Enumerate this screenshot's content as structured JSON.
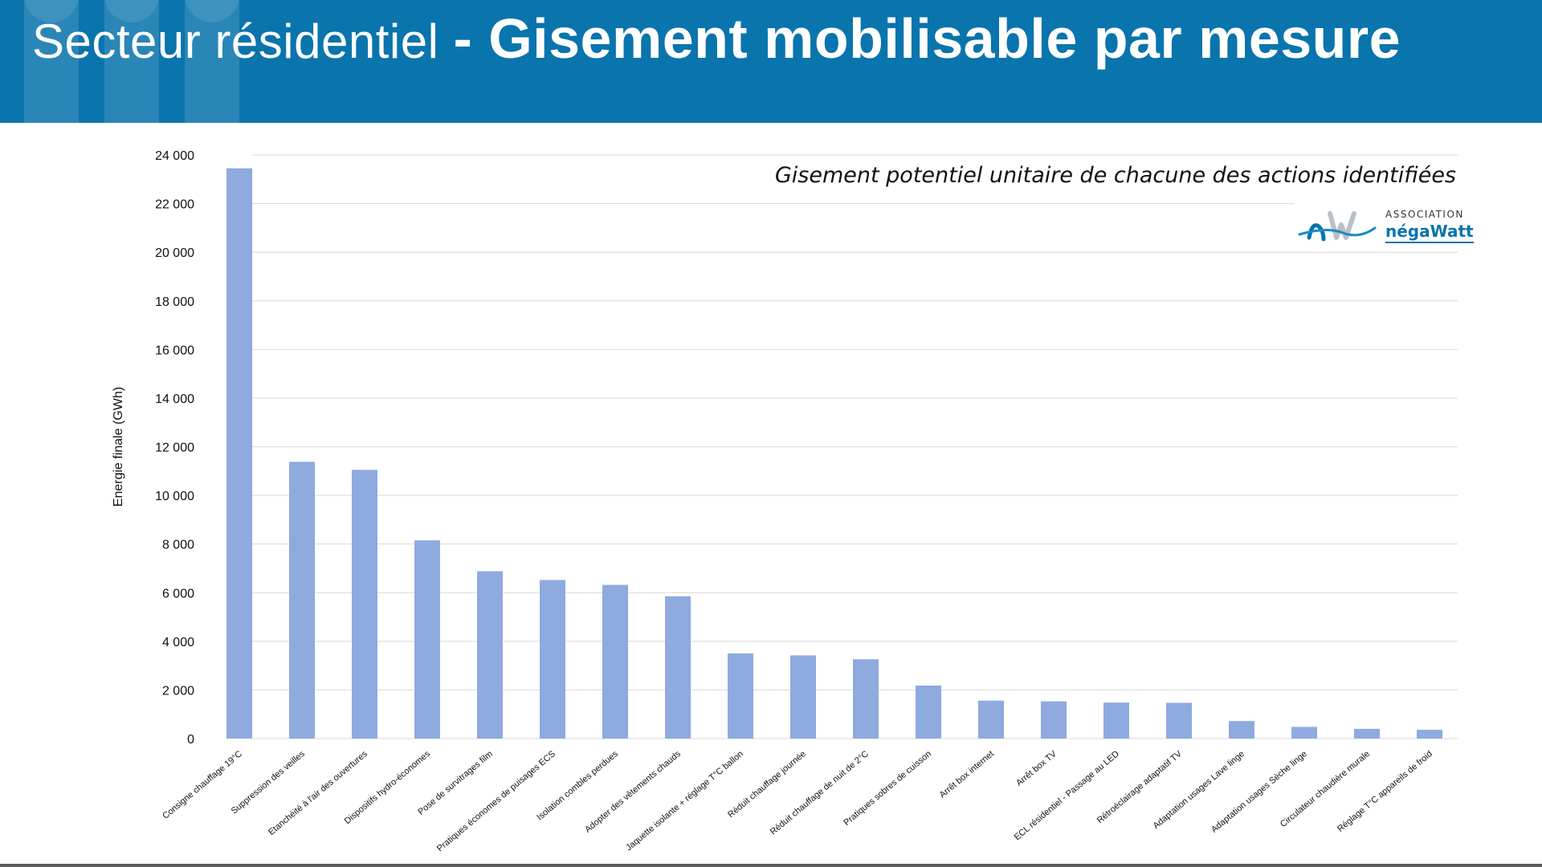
{
  "header": {
    "title_light": "Secteur résidentiel",
    "title_bold": "- Gisement mobilisable par mesure"
  },
  "caption": "Gisement potentiel unitaire de chacune des actions identifiées",
  "logo": {
    "association": "ASSOCIATION",
    "name": "négaWatt",
    "icon": "negawatt-logo-icon"
  },
  "colors": {
    "header_bg": "#0a74ad",
    "bar": "#8eaadf",
    "grid": "#d9d9d9",
    "logo_blue": "#0a74ad"
  },
  "chart_data": {
    "type": "bar",
    "title": "",
    "xlabel": "",
    "ylabel": "Energie finale (GWh)",
    "ylim": [
      0,
      24000
    ],
    "yticks": [
      0,
      2000,
      4000,
      6000,
      8000,
      10000,
      12000,
      14000,
      16000,
      18000,
      20000,
      22000,
      24000
    ],
    "ytick_labels": [
      "0",
      "2 000",
      "4 000",
      "6 000",
      "8 000",
      "10 000",
      "12 000",
      "14 000",
      "16 000",
      "18 000",
      "20 000",
      "22 000",
      "24 000"
    ],
    "grid": true,
    "categories": [
      "Consigne chauffage 19°C",
      "Suppression des veilles",
      "Etanchéité à l'air des ouvertures",
      "Dispositifs hydro-économes",
      "Pose de survitrages film",
      "Pratiques économes de puisages ECS",
      "Isolation combles perdues",
      "Adopter des vêtements chauds",
      "Jaquette isolante + réglage T°C ballon",
      "Réduit chauffage journée",
      "Réduit chauffage de nuit de 2°C",
      "Pratiques sobres de cuisson",
      "Arrêt box internet",
      "Arrêt box TV",
      "ECL résidentiel - Passage au LED",
      "Rétroéclairage adaptatif TV",
      "Adaptation usages Lave linge",
      "Adaptation usages Sèche linge",
      "Circulateur chaudière murale",
      "Réglage T°C appareils de froid"
    ],
    "values": [
      23450,
      11380,
      11050,
      8150,
      6880,
      6520,
      6320,
      5850,
      3500,
      3420,
      3260,
      2180,
      1560,
      1530,
      1480,
      1470,
      720,
      480,
      400,
      360
    ]
  }
}
